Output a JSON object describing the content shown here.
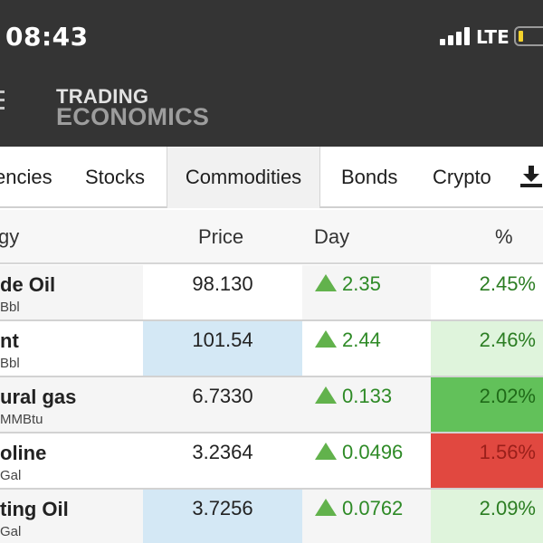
{
  "status_bar": {
    "time": "08:43",
    "network": "LTE",
    "battery_level": 0.15,
    "battery_color": "#f3d22c",
    "signal_bars": 4
  },
  "header": {
    "logo_line1": "TRADING",
    "logo_line2": "ECONOMICS",
    "menu_icon": "hamburger-icon",
    "background": "#343434"
  },
  "tabs": [
    {
      "label": "encies",
      "active": false
    },
    {
      "label": "Stocks",
      "active": false
    },
    {
      "label": "Commodities",
      "active": true
    },
    {
      "label": "Bonds",
      "active": false
    },
    {
      "label": "Crypto",
      "active": false
    }
  ],
  "download_icon": "download-icon",
  "table": {
    "columns": [
      "gy",
      "Price",
      "Day",
      "%"
    ],
    "rows": [
      {
        "name": "de Oil",
        "unit": "Bbl",
        "price": "98.130",
        "day": "2.35",
        "percent": "2.45%",
        "price_bg": "#ffffff",
        "pct_bg": "#ffffff",
        "pct_color": "#2b7d22",
        "row_bg": "#f5f5f5"
      },
      {
        "name": "nt",
        "unit": "Bbl",
        "price": "101.54",
        "day": "2.44",
        "percent": "2.46%",
        "price_bg": "#d4e8f5",
        "pct_bg": "#dff4dc",
        "pct_color": "#2b7d22",
        "row_bg": "#ffffff"
      },
      {
        "name": "ural gas",
        "unit": "MMBtu",
        "price": "6.7330",
        "day": "0.133",
        "percent": "2.02%",
        "price_bg": "#f5f5f5",
        "pct_bg": "#62c15a",
        "pct_color": "#1f6a18",
        "row_bg": "#f5f5f5"
      },
      {
        "name": "oline",
        "unit": "Gal",
        "price": "3.2364",
        "day": "0.0496",
        "percent": "1.56%",
        "price_bg": "#ffffff",
        "pct_bg": "#e14840",
        "pct_color": "#9a1f1a",
        "row_bg": "#ffffff"
      },
      {
        "name": "ting Oil",
        "unit": "Gal",
        "price": "3.7256",
        "day": "0.0762",
        "percent": "2.09%",
        "price_bg": "#d4e8f5",
        "pct_bg": "#dff4dc",
        "pct_color": "#2b7d22",
        "row_bg": "#f5f5f5"
      }
    ],
    "up_color": "#62b24c"
  }
}
